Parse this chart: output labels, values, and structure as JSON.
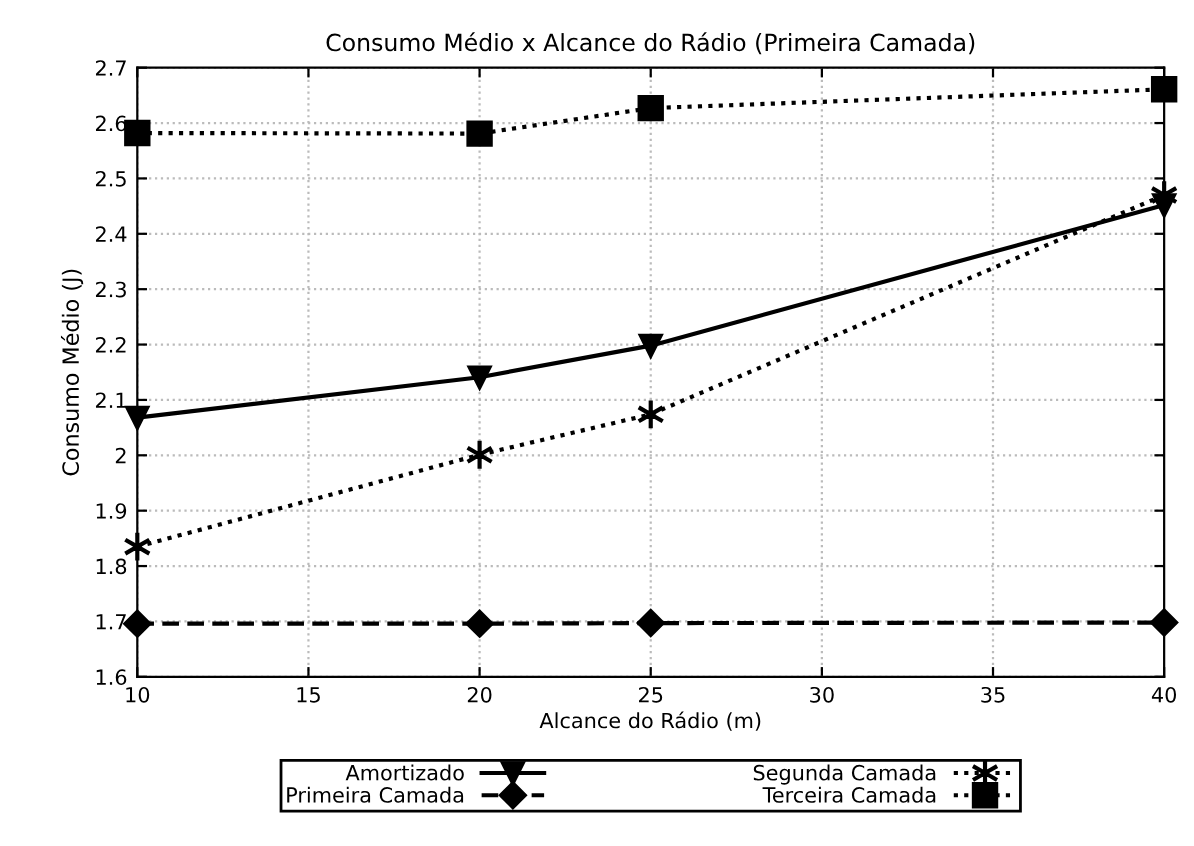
{
  "chart_data": {
    "type": "line",
    "title": "Consumo Médio x Alcance do Rádio (Primeira Camada)",
    "xlabel": "Alcance do Rádio (m)",
    "ylabel": "Consumo Médio (J)",
    "x": [
      10,
      20,
      25,
      40
    ],
    "series": [
      {
        "name": "Amortizado",
        "color": "#000000",
        "marker": "triangle",
        "line_style": "solid",
        "values": [
          2.068,
          2.141,
          2.198,
          2.452
        ]
      },
      {
        "name": "Primeira Camada",
        "color": "#000000",
        "marker": "diamond",
        "line_style": "dashed",
        "values": [
          1.696,
          1.696,
          1.697,
          1.698
        ]
      },
      {
        "name": "Segunda Camada",
        "color": "#000000",
        "marker": "cross",
        "line_style": "dotted",
        "values": [
          1.835,
          2.001,
          2.074,
          2.47
        ]
      },
      {
        "name": "Terceira Camada",
        "color": "#000000",
        "marker": "square",
        "line_style": "dotted",
        "values": [
          2.582,
          2.581,
          2.627,
          2.661
        ]
      }
    ],
    "xlim": [
      10,
      40
    ],
    "xticks": [
      10,
      15,
      20,
      25,
      30,
      35,
      40
    ],
    "ylim": [
      1.6,
      2.7
    ],
    "yticks": [
      1.6,
      1.7,
      1.8,
      1.9,
      2,
      2.1,
      2.2,
      2.3,
      2.4,
      2.5,
      2.6,
      2.7
    ],
    "grid": true,
    "legend": "bottom"
  }
}
